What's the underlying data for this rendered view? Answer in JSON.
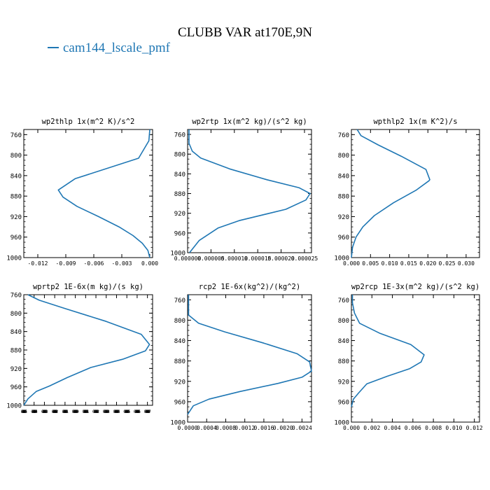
{
  "title": "CLUBB VAR at170E,9N",
  "legend": {
    "label": "cam144_lscale_pmf",
    "color": "#1f77b4"
  },
  "chart_data": [
    {
      "type": "line",
      "title": "wp2thlp  1x(m^2 K)/s^2",
      "ylim": [
        1000,
        750
      ],
      "xlim": [
        -0.0135,
        0.0003
      ],
      "yticks": [
        760,
        800,
        840,
        880,
        920,
        960,
        1000
      ],
      "xticks": [
        -0.012,
        -0.009,
        -0.006,
        -0.003,
        0.0
      ],
      "xticklabels": [
        "-0.012",
        "-0.009",
        "-0.006",
        "-0.003",
        "0.000"
      ],
      "series": [
        {
          "x": [
            0.0,
            -0.0001,
            -0.0012,
            -0.008,
            -0.0098,
            -0.0093,
            -0.0078,
            -0.0055,
            -0.0033,
            -0.0018,
            -0.0008,
            -0.0002,
            0.0
          ],
          "y": [
            750,
            772,
            806,
            846,
            868,
            882,
            900,
            920,
            940,
            957,
            972,
            986,
            1000
          ]
        }
      ]
    },
    {
      "type": "line",
      "title": "wp2rtp  1x(m^2 kg)/(s^2 kg)",
      "ylim": [
        1000,
        750
      ],
      "xlim": [
        0,
        2.65e-05
      ],
      "yticks": [
        760,
        800,
        840,
        880,
        920,
        960,
        1000
      ],
      "xticks": [
        0,
        5e-06,
        1e-05,
        1.5e-05,
        2e-05,
        2.5e-05
      ],
      "xticklabels": [
        "0.000000",
        "0.000005",
        "0.000010",
        "0.000015",
        "0.000020",
        "0.000025"
      ],
      "series": [
        {
          "x": [
            3e-07,
            3e-07,
            1e-06,
            2.8e-06,
            9e-06,
            1.7e-05,
            2.38e-05,
            2.62e-05,
            2.53e-05,
            2.1e-05,
            1.1e-05,
            6.5e-06,
            2.5e-06,
            4e-07
          ],
          "y": [
            750,
            778,
            794,
            808,
            830,
            852,
            868,
            880,
            893,
            912,
            935,
            950,
            975,
            1000
          ]
        }
      ]
    },
    {
      "type": "line",
      "title": "wpthlp2  1x(m K^2)/s",
      "ylim": [
        1000,
        750
      ],
      "xlim": [
        0,
        0.0335
      ],
      "yticks": [
        760,
        800,
        840,
        880,
        920,
        960,
        1000
      ],
      "xticks": [
        0,
        0.005,
        0.01,
        0.015,
        0.02,
        0.025,
        0.03
      ],
      "xticklabels": [
        "0.000",
        "0.005",
        "0.010",
        "0.015",
        "0.020",
        "0.025",
        "0.030"
      ],
      "series": [
        {
          "x": [
            0.0015,
            0.0025,
            0.007,
            0.013,
            0.0195,
            0.0205,
            0.0203,
            0.017,
            0.011,
            0.006,
            0.003,
            0.0012,
            0.0003,
            0.0
          ],
          "y": [
            750,
            762,
            780,
            802,
            828,
            848,
            850,
            868,
            893,
            918,
            940,
            960,
            980,
            1000
          ]
        }
      ]
    },
    {
      "type": "line",
      "title": "wprtp2  1E-6x(m kg)/(s kg)",
      "ylim": [
        1000,
        760
      ],
      "xlim": [
        -5e-09,
        7.5e-09
      ],
      "yticks": [
        760,
        800,
        840,
        880,
        920,
        960,
        1000
      ],
      "xticks": [
        -5e-09,
        -4e-09,
        -3e-09,
        -2e-09,
        -1e-09,
        0,
        1e-09,
        2e-09,
        3e-09,
        4e-09,
        5e-09,
        6e-09,
        7e-09
      ],
      "xticklabels": [
        "-0.000000005",
        "-0.000000004",
        "-0.000000003",
        "-0.000000002",
        "-0.000000001",
        "0.000000000",
        "0.000000001",
        "0.000000002",
        "0.000000003",
        "0.000000004",
        "0.000000005",
        "0.000000006",
        "0.000000007"
      ],
      "series": [
        {
          "x": [
            -4.6e-09,
            -3.5e-09,
            -1e-09,
            3e-09,
            6.4e-09,
            7.2e-09,
            6.8e-09,
            4.6e-09,
            1.5e-09,
            -8e-10,
            -2.5e-09,
            -3.8e-09,
            -4.6e-09,
            -5e-09
          ],
          "y": [
            760,
            772,
            790,
            818,
            846,
            868,
            882,
            900,
            918,
            940,
            958,
            970,
            986,
            1000
          ]
        }
      ]
    },
    {
      "type": "line",
      "title": "rcp2  1E-6x(kg^2)/(kg^2)",
      "ylim": [
        1000,
        750
      ],
      "xlim": [
        0,
        0.0026
      ],
      "yticks": [
        760,
        800,
        840,
        880,
        920,
        960,
        1000
      ],
      "xticks": [
        0,
        0.0004,
        0.0008,
        0.0012,
        0.0016,
        0.002,
        0.0024
      ],
      "xticklabels": [
        "0.0000",
        "0.0004",
        "0.0008",
        "0.0012",
        "0.0016",
        "0.0020",
        "0.0024"
      ],
      "series": [
        {
          "x": [
            2e-05,
            2e-05,
            0.0001,
            0.00023,
            0.00078,
            0.0016,
            0.0023,
            0.00256,
            0.0026,
            0.0024,
            0.0019,
            0.0011,
            0.00045,
            0.00012,
            0.0
          ],
          "y": [
            750,
            790,
            796,
            806,
            823,
            845,
            866,
            882,
            900,
            912,
            924,
            940,
            955,
            968,
            985
          ]
        }
      ]
    },
    {
      "type": "line",
      "title": "wp2rcp  1E-3x(m^2 kg)/(s^2 kg)",
      "ylim": [
        1000,
        750
      ],
      "xlim": [
        0,
        0.0125
      ],
      "yticks": [
        760,
        800,
        840,
        880,
        920,
        960,
        1000
      ],
      "xticks": [
        0,
        0.002,
        0.004,
        0.006,
        0.008,
        0.01,
        0.012
      ],
      "xticklabels": [
        "0.000",
        "0.002",
        "0.004",
        "0.006",
        "0.008",
        "0.010",
        "0.012"
      ],
      "series": [
        {
          "x": [
            0.0001,
            0.0001,
            0.0003,
            0.0008,
            0.0028,
            0.0058,
            0.0071,
            0.0068,
            0.0057,
            0.0035,
            0.0015,
            0.0007,
            0.0002,
            0.0
          ],
          "y": [
            750,
            766,
            786,
            806,
            826,
            848,
            868,
            882,
            895,
            910,
            925,
            943,
            955,
            970
          ]
        }
      ]
    }
  ]
}
